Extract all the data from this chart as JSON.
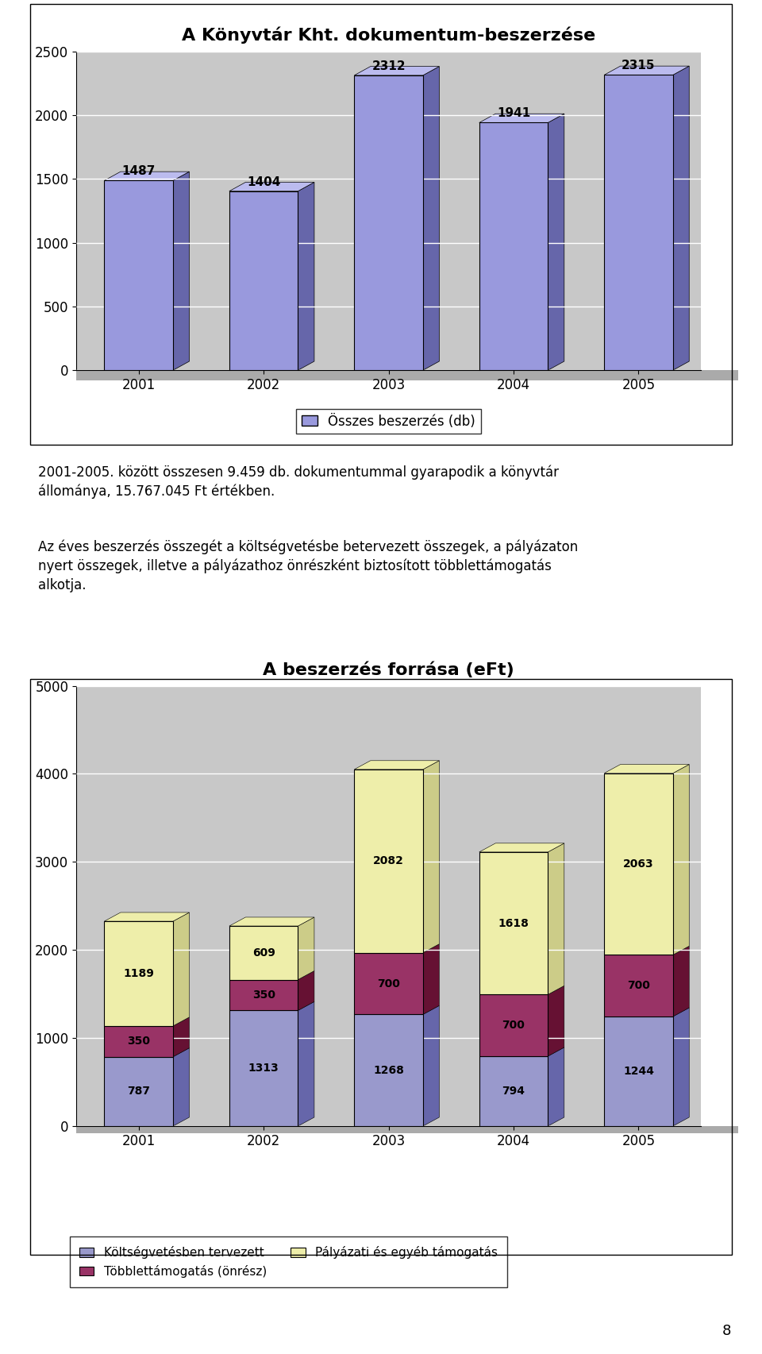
{
  "chart1": {
    "title": "A Könyvtár Kht. dokumentum-beszerzése",
    "years": [
      "2001",
      "2002",
      "2003",
      "2004",
      "2005"
    ],
    "values": [
      1487,
      1404,
      2312,
      1941,
      2315
    ],
    "bar_color": "#9999dd",
    "bar_color_dark": "#6666aa",
    "bar_top_color": "#bbbbee",
    "bar_edge_color": "#000000",
    "legend_label": "Összes beszerzés (db)",
    "ylim": [
      0,
      2500
    ],
    "yticks": [
      0,
      500,
      1000,
      1500,
      2000,
      2500
    ],
    "plot_bg": "#c8c8c8",
    "floor_bg": "#aaaaaa"
  },
  "text_block": {
    "para1_line1": "2001-2005. között összesen 9.459 db. dokumentummal gyarapodik a könyvtár",
    "para1_line2": "állománya, 15.767.045 Ft értékben.",
    "para2_line1": "Az éves beszerzés összegét a költségvetésbe betervezett összegek, a pályázaton",
    "para2_line2": "nyert összegek, illetve a pályázathoz önrészként biztosított többlettámogatás",
    "para2_line3": "alkotja."
  },
  "chart2": {
    "title": "A beszerzés forrása (eFt)",
    "years": [
      "2001",
      "2002",
      "2003",
      "2004",
      "2005"
    ],
    "koltsegvetes": [
      787,
      1313,
      1268,
      794,
      1244
    ],
    "tobblet": [
      350,
      350,
      700,
      700,
      700
    ],
    "palyazati": [
      1189,
      609,
      2082,
      1618,
      2063
    ],
    "color_koltsegvetes": "#9999cc",
    "color_tobblet": "#993366",
    "color_palyazati": "#eeeeaa",
    "color_kv_dark": "#6666aa",
    "color_tb_dark": "#661133",
    "color_pal_dark": "#cccc88",
    "bar_edge_color": "#000000",
    "legend_koltsegvetes": "Költségvetésben tervezett",
    "legend_tobblet": "Többlettámogatás (önrész)",
    "legend_palyazati": "Pályázati és egyéb támogatás",
    "ylim": [
      0,
      5000
    ],
    "yticks": [
      0,
      1000,
      2000,
      3000,
      4000,
      5000
    ],
    "plot_bg": "#c8c8c8",
    "floor_bg": "#aaaaaa"
  },
  "page_number": "8",
  "bg_white": "#ffffff"
}
